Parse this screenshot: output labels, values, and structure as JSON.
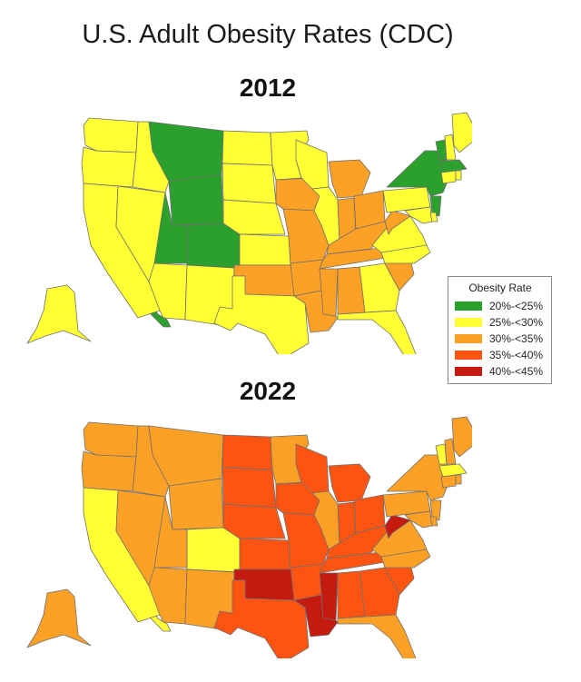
{
  "title": "U.S. Adult Obesity Rates (CDC)",
  "maps": [
    {
      "year": "2012"
    },
    {
      "year": "2022"
    }
  ],
  "legend": {
    "title": "Obesity Rate",
    "items": [
      {
        "label": "20%-<25%",
        "color": "#2ca02c"
      },
      {
        "label": "25%-<30%",
        "color": "#ffff33"
      },
      {
        "label": "30%-<35%",
        "color": "#fda126"
      },
      {
        "label": "35%-<40%",
        "color": "#fd5412"
      },
      {
        "label": "40%-<45%",
        "color": "#c41a10"
      }
    ]
  },
  "states_2012": {
    "WA": 2,
    "OR": 2,
    "CA": 2,
    "ID": 2,
    "NV": 2,
    "MT": 1,
    "WY": 1,
    "UT": 1,
    "CO": 1,
    "AZ": 2,
    "NM": 2,
    "ND": 2,
    "SD": 2,
    "NE": 2,
    "KS": 2,
    "OK": 3,
    "TX": 2,
    "MN": 2,
    "IA": 3,
    "MO": 3,
    "AR": 3,
    "LA": 3,
    "WI": 2,
    "IL": 2,
    "MI": 3,
    "IN": 3,
    "OH": 3,
    "KY": 3,
    "TN": 3,
    "MS": 3,
    "AL": 3,
    "GA": 2,
    "FL": 2,
    "SC": 3,
    "NC": 2,
    "VA": 2,
    "WV": 3,
    "PA": 2,
    "NY": 1,
    "NJ": 1,
    "DE": 2,
    "MD": 2,
    "VT": 1,
    "NH": 2,
    "ME": 2,
    "MA": 1,
    "CT": 2,
    "RI": 2,
    "AK": 2,
    "HI": 1
  },
  "states_2022": {
    "WA": 3,
    "OR": 3,
    "CA": 2,
    "ID": 3,
    "NV": 3,
    "MT": 3,
    "WY": 3,
    "UT": 3,
    "CO": 2,
    "AZ": 3,
    "NM": 3,
    "ND": 4,
    "SD": 4,
    "NE": 4,
    "KS": 4,
    "OK": 5,
    "TX": 4,
    "MN": 3,
    "IA": 4,
    "MO": 4,
    "AR": 4,
    "LA": 5,
    "WI": 4,
    "IL": 3,
    "MI": 4,
    "IN": 4,
    "OH": 4,
    "KY": 4,
    "TN": 4,
    "MS": 5,
    "AL": 4,
    "GA": 4,
    "FL": 3,
    "SC": 4,
    "NC": 3,
    "VA": 3,
    "WV": 5,
    "PA": 3,
    "NY": 3,
    "NJ": 3,
    "DE": 3,
    "MD": 3,
    "VT": 2,
    "NH": 3,
    "ME": 3,
    "MA": 2,
    "CT": 3,
    "RI": 3,
    "AK": 3,
    "HI": 2
  }
}
